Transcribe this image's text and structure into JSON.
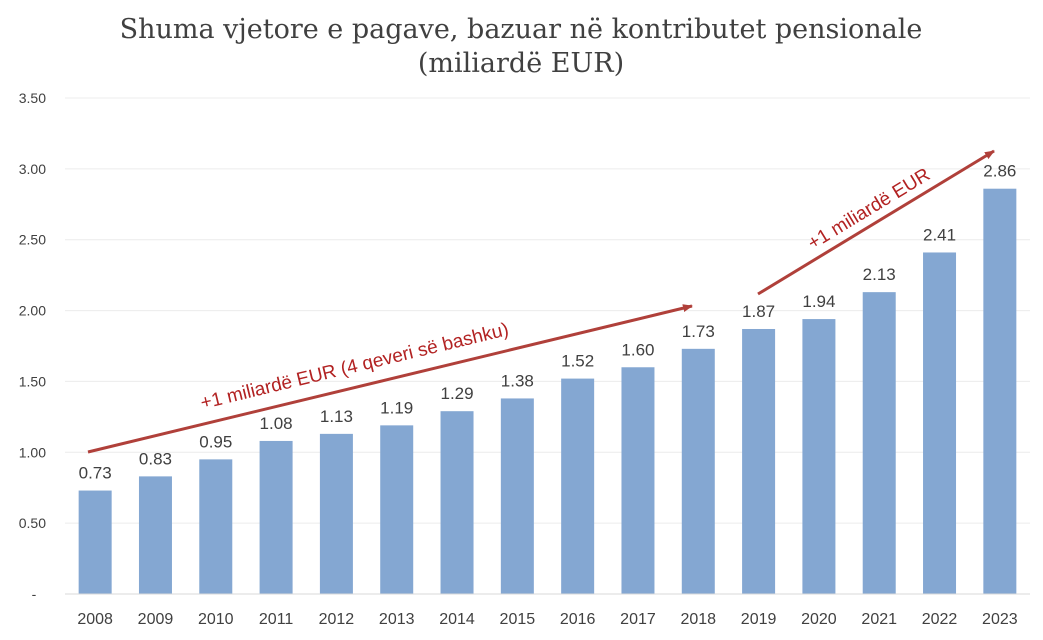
{
  "chart_data": {
    "type": "bar",
    "title_line1": "Shuma vjetore e pagave, bazuar në kontributet pensionale",
    "title_line2": "(miliardë EUR)",
    "categories": [
      "2008",
      "2009",
      "2010",
      "2011",
      "2012",
      "2013",
      "2014",
      "2015",
      "2016",
      "2017",
      "2018",
      "2019",
      "2020",
      "2021",
      "2022",
      "2023"
    ],
    "values": [
      0.73,
      0.83,
      0.95,
      1.08,
      1.13,
      1.19,
      1.29,
      1.38,
      1.52,
      1.6,
      1.73,
      1.87,
      1.94,
      2.13,
      2.41,
      2.86
    ],
    "value_labels": [
      "0.73",
      "0.83",
      "0.95",
      "1.08",
      "1.13",
      "1.19",
      "1.29",
      "1.38",
      "1.52",
      "1.60",
      "1.73",
      "1.87",
      "1.94",
      "2.13",
      "2.41",
      "2.86"
    ],
    "ylim": [
      0,
      3.5
    ],
    "y_ticks": [
      0,
      0.5,
      1.0,
      1.5,
      2.0,
      2.5,
      3.0,
      3.5
    ],
    "y_tick_labels": [
      "-",
      "0.50",
      "1.00",
      "1.50",
      "2.00",
      "2.50",
      "3.00",
      "3.50"
    ],
    "grid": true,
    "bar_color": "#84a7d2",
    "annotations": [
      {
        "text": "+1 miliardë EUR (4 qeveri së bashku)",
        "color": "#b22222"
      },
      {
        "text": "+1 miliardë EUR",
        "color": "#b22222"
      }
    ]
  }
}
